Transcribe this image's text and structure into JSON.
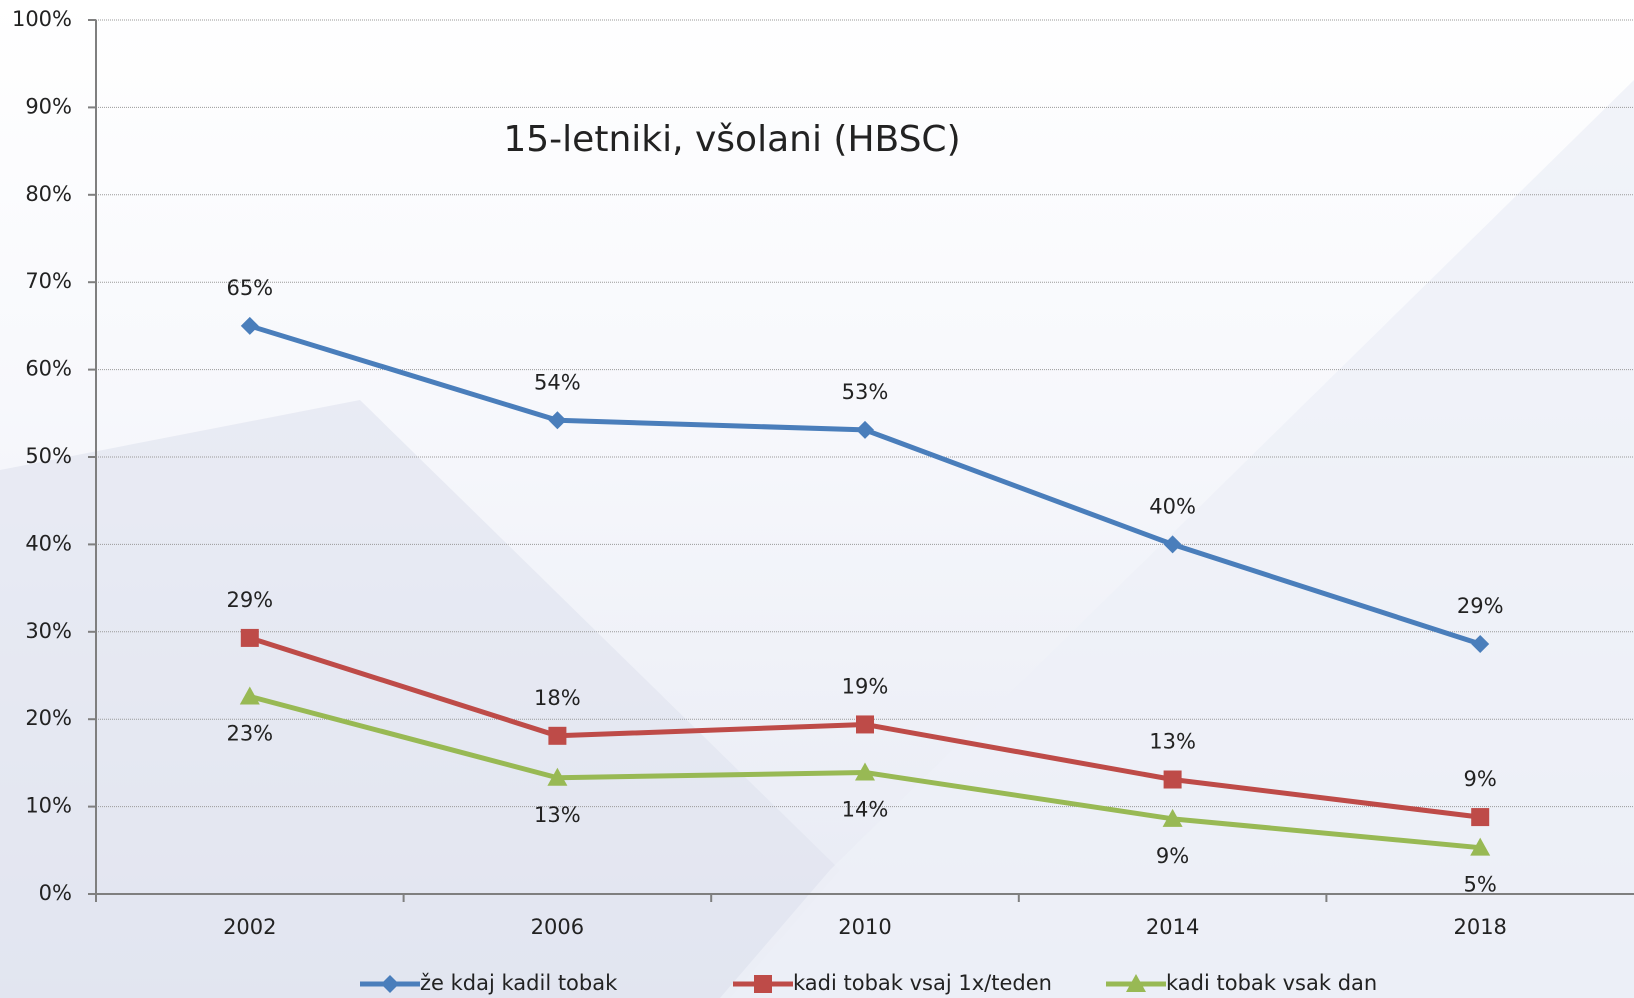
{
  "chart_data": {
    "type": "line",
    "title": "15-letniki, všolani (HBSC)",
    "categories": [
      "2002",
      "2006",
      "2010",
      "2014",
      "2018"
    ],
    "series": [
      {
        "name": "že kdaj kadil tobak",
        "color": "#4a7ebb",
        "marker": "diamond",
        "values": [
          65,
          54.2,
          53.1,
          40,
          28.6
        ],
        "value_labels": [
          "65%",
          "54%",
          "53%",
          "40%",
          "29%"
        ]
      },
      {
        "name": "kadi tobak vsaj 1x/teden",
        "color": "#be4b48",
        "marker": "square",
        "values": [
          29.3,
          18.1,
          19.4,
          13.1,
          8.8
        ],
        "value_labels": [
          "29%",
          "18%",
          "19%",
          "13%",
          "9%"
        ]
      },
      {
        "name": "kadi tobak vsak dan",
        "color": "#98b954",
        "marker": "triangle",
        "values": [
          22.6,
          13.3,
          13.9,
          8.6,
          5.3
        ],
        "value_labels": [
          "23%",
          "13%",
          "14%",
          "9%",
          "5%"
        ]
      }
    ],
    "ylim": [
      0,
      100
    ],
    "yticks": [
      {
        "value": 0,
        "label": "0%"
      },
      {
        "value": 10,
        "label": "10%"
      },
      {
        "value": 20,
        "label": "20%"
      },
      {
        "value": 30,
        "label": "30%"
      },
      {
        "value": 40,
        "label": "40%"
      },
      {
        "value": 50,
        "label": "50%"
      },
      {
        "value": 60,
        "label": "60%"
      },
      {
        "value": 70,
        "label": "70%"
      },
      {
        "value": 80,
        "label": "80%"
      },
      {
        "value": 90,
        "label": "90%"
      },
      {
        "value": 100,
        "label": "100%"
      }
    ],
    "grid": true
  }
}
